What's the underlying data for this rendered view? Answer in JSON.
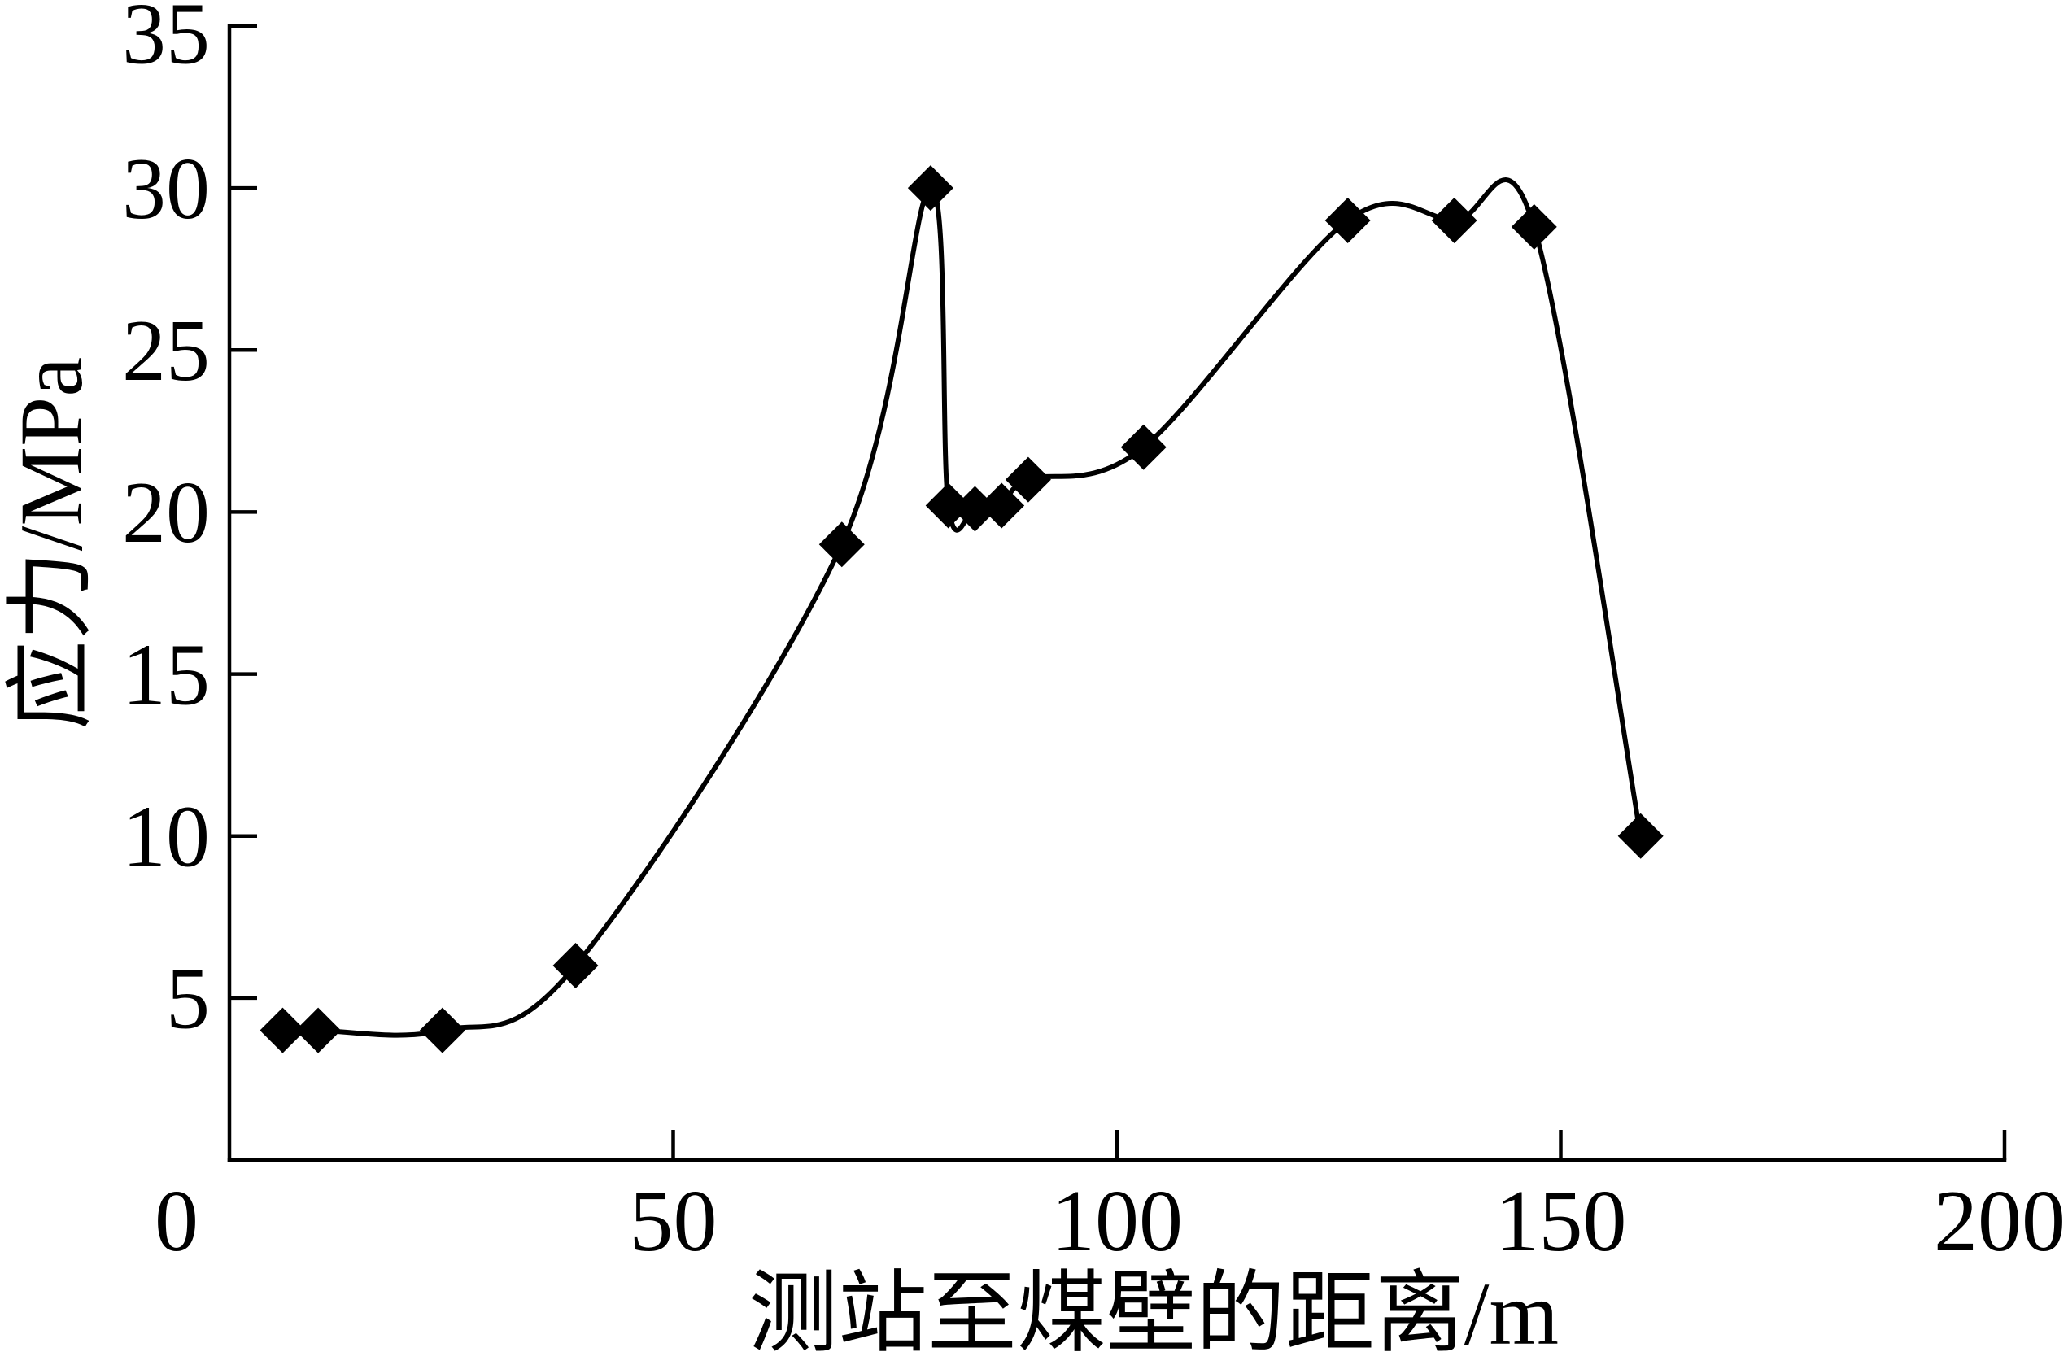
{
  "chart_data": {
    "type": "line",
    "smooth": true,
    "marker": "diamond",
    "color": "#000000",
    "xlabel": "测站至煤壁的距离/m",
    "ylabel": "应力/MPa",
    "xlim": [
      0,
      200
    ],
    "ylim": [
      0,
      35
    ],
    "xticks": [
      0,
      50,
      100,
      150,
      200
    ],
    "yticks": [
      5,
      10,
      15,
      20,
      25,
      30,
      35
    ],
    "grid": false,
    "series": [
      {
        "x": [
          6,
          10,
          24,
          39,
          69,
          79,
          81,
          84,
          87,
          90,
          103,
          126,
          138,
          147,
          159
        ],
        "y": [
          4,
          4,
          4,
          6,
          19,
          30,
          20.2,
          20.1,
          20.2,
          21,
          22,
          29,
          29,
          28.8,
          10
        ]
      }
    ]
  }
}
